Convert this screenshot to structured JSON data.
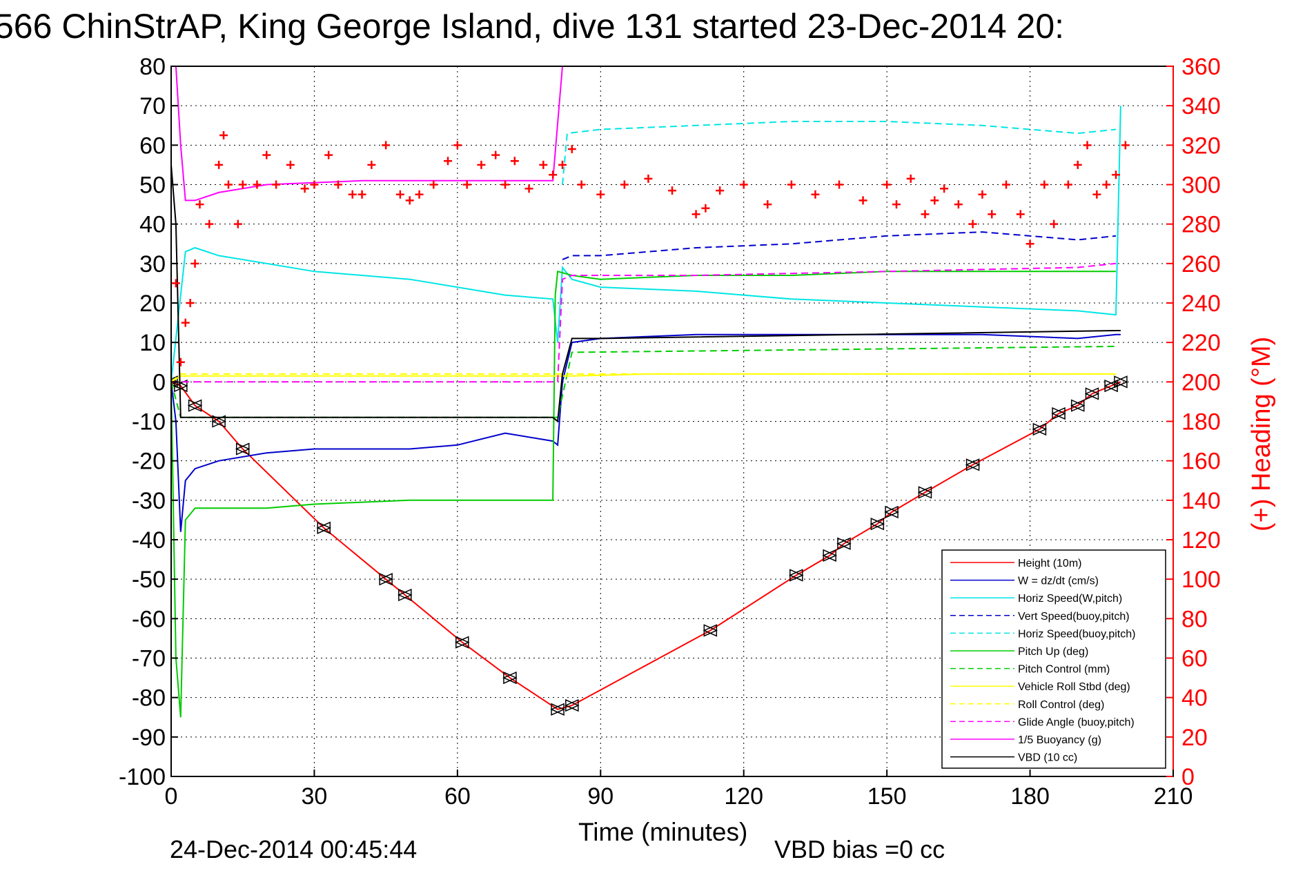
{
  "chart_data": {
    "type": "line",
    "title": "566 ChinStrAP, King George Island, dive 131 started 23-Dec-2014 20:",
    "xlabel": "Time (minutes)",
    "ylabel_right": "(+) Heading (°M)",
    "footer_left": "24-Dec-2014 00:45:44",
    "footer_right": "VBD bias =0 cc",
    "xlim": [
      0,
      210
    ],
    "ylim": [
      -100,
      80
    ],
    "y2lim": [
      0,
      360
    ],
    "x_ticks": [
      "0",
      "30",
      "60",
      "90",
      "120",
      "150",
      "180",
      "210"
    ],
    "y_ticks": [
      "80",
      "70",
      "60",
      "50",
      "40",
      "30",
      "20",
      "10",
      "0",
      "-10",
      "-20",
      "-30",
      "-40",
      "-50",
      "-60",
      "-70",
      "-80",
      "-90",
      "-100"
    ],
    "y2_ticks": [
      "360",
      "340",
      "320",
      "300",
      "280",
      "260",
      "240",
      "220",
      "200",
      "180",
      "160",
      "140",
      "120",
      "100",
      "80",
      "60",
      "40",
      "20",
      "0"
    ],
    "grid": true,
    "legend_position": "lower-right",
    "series": [
      {
        "name": "Height (10m)",
        "color": "#ff0000",
        "style": "solid",
        "x": [
          0,
          2,
          5,
          10,
          15,
          32,
          45,
          49,
          61,
          71,
          81,
          84,
          113,
          131,
          138,
          141,
          148,
          151,
          158,
          168,
          182,
          186,
          190,
          193,
          197,
          199
        ],
        "y": [
          0,
          -1,
          -6,
          -10,
          -17,
          -37,
          -50,
          -54,
          -66,
          -75,
          -83,
          -82,
          -63,
          -49,
          -44,
          -41,
          -36,
          -33,
          -28,
          -21,
          -12,
          -8,
          -6,
          -3,
          -1,
          0
        ]
      },
      {
        "name": "W = dz/dt (cm/s)",
        "color": "#0000cc",
        "style": "solid",
        "x": [
          0,
          1,
          2,
          3,
          5,
          10,
          20,
          30,
          40,
          50,
          60,
          70,
          80,
          81,
          82,
          84,
          90,
          110,
          130,
          150,
          170,
          190,
          198,
          199
        ],
        "y": [
          0,
          -10,
          -38,
          -25,
          -22,
          -20,
          -18,
          -17,
          -17,
          -17,
          -16,
          -13,
          -15,
          -16,
          0,
          10,
          11,
          12,
          12,
          12,
          12,
          11,
          12,
          12
        ]
      },
      {
        "name": "Horiz Speed(W,pitch)",
        "color": "#00e5e5",
        "style": "solid",
        "x": [
          0,
          3,
          5,
          10,
          20,
          30,
          40,
          50,
          60,
          70,
          80,
          81,
          82,
          84,
          90,
          110,
          130,
          150,
          170,
          190,
          198,
          199
        ],
        "y": [
          0,
          33,
          34,
          32,
          30,
          28,
          27,
          26,
          24,
          22,
          21,
          10,
          29,
          26,
          24,
          23,
          21,
          20,
          19,
          18,
          17,
          70
        ]
      },
      {
        "name": "Vert Speed(buoy,pitch)",
        "color": "#0000cc",
        "style": "dashed",
        "x": [
          82,
          84,
          90,
          110,
          130,
          150,
          170,
          190,
          198
        ],
        "y": [
          31,
          32,
          32,
          34,
          35,
          37,
          38,
          36,
          37
        ]
      },
      {
        "name": "Horiz Speed(buoy,pitch)",
        "color": "#00e5e5",
        "style": "dashed",
        "x": [
          82,
          83,
          90,
          110,
          130,
          150,
          170,
          190,
          198
        ],
        "y": [
          50,
          63,
          64,
          65,
          66,
          66,
          65,
          63,
          64
        ]
      },
      {
        "name": "Pitch Up (deg)",
        "color": "#00cc00",
        "style": "solid",
        "x": [
          0,
          1,
          2,
          3,
          5,
          10,
          20,
          30,
          50,
          70,
          80,
          80.5,
          81,
          84,
          90,
          110,
          130,
          150,
          170,
          190,
          198
        ],
        "y": [
          0,
          -70,
          -85,
          -35,
          -32,
          -32,
          -32,
          -31,
          -30,
          -30,
          -30,
          22,
          28,
          27,
          26,
          27,
          27,
          28,
          28,
          28,
          28
        ]
      },
      {
        "name": "Pitch Control (mm)",
        "color": "#00cc00",
        "style": "dashed",
        "x": [
          0,
          2,
          81,
          84,
          198
        ],
        "y": [
          0,
          -9,
          -9,
          7.5,
          9
        ]
      },
      {
        "name": "Vehicle Roll Stbd (deg)",
        "color": "#ffff00",
        "style": "solid",
        "x": [
          0,
          2,
          20,
          40,
          60,
          80,
          84,
          100,
          130,
          160,
          190,
          198
        ],
        "y": [
          0,
          1.5,
          1.5,
          1.5,
          1.5,
          1.5,
          1.5,
          2,
          2,
          2,
          2,
          2
        ]
      },
      {
        "name": "Roll Control (deg)",
        "color": "#ffff00",
        "style": "dashed",
        "x": [
          0,
          2,
          80,
          84,
          198
        ],
        "y": [
          0,
          2,
          2,
          2,
          2
        ]
      },
      {
        "name": "Glide Angle (buoy,pitch)",
        "color": "#ff00ff",
        "style": "dashed",
        "x": [
          0,
          81,
          82,
          84,
          110,
          150,
          190,
          198
        ],
        "y": [
          0,
          0,
          26,
          27,
          27,
          28,
          29,
          30
        ]
      },
      {
        "name": "1/5 Buoyancy (g)",
        "color": "#ff00ff",
        "style": "solid",
        "x": [
          1,
          2,
          3,
          5,
          10,
          20,
          40,
          60,
          80,
          82
        ],
        "y": [
          80,
          60,
          46,
          46,
          48,
          50,
          51,
          51,
          51,
          80
        ]
      },
      {
        "name": "VBD (10 cc)",
        "color": "#000000",
        "style": "solid",
        "x": [
          0,
          1,
          2,
          5,
          80,
          81,
          82,
          84,
          90,
          198,
          199
        ],
        "y": [
          55,
          40,
          -9,
          -9,
          -9,
          -10,
          2,
          11,
          11,
          13,
          13
        ]
      },
      {
        "name": "Heading",
        "axis": "right",
        "color": "#ff0000",
        "style": "plus",
        "x": [
          1,
          2,
          3,
          4,
          5,
          6,
          8,
          10,
          11,
          12,
          14,
          15,
          18,
          20,
          22,
          25,
          28,
          30,
          33,
          35,
          38,
          40,
          42,
          45,
          48,
          50,
          52,
          55,
          58,
          60,
          62,
          65,
          68,
          70,
          72,
          75,
          78,
          80,
          82,
          84,
          86,
          90,
          95,
          100,
          105,
          110,
          112,
          115,
          120,
          125,
          130,
          135,
          140,
          145,
          150,
          152,
          155,
          158,
          160,
          162,
          165,
          168,
          170,
          172,
          175,
          178,
          180,
          183,
          185,
          188,
          190,
          192,
          194,
          196,
          198,
          200
        ],
        "y": [
          250,
          210,
          230,
          240,
          260,
          290,
          280,
          310,
          325,
          300,
          280,
          300,
          300,
          315,
          300,
          310,
          298,
          300,
          315,
          300,
          295,
          295,
          310,
          320,
          295,
          292,
          295,
          300,
          312,
          320,
          300,
          310,
          315,
          300,
          312,
          298,
          310,
          305,
          310,
          318,
          300,
          295,
          300,
          303,
          297,
          285,
          288,
          297,
          300,
          290,
          300,
          295,
          300,
          292,
          300,
          290,
          303,
          285,
          292,
          298,
          290,
          280,
          295,
          285,
          300,
          285,
          270,
          300,
          280,
          300,
          310,
          320,
          295,
          300,
          305,
          320
        ]
      }
    ],
    "legend": [
      "Height (10m)",
      "W = dz/dt (cm/s)",
      "Horiz Speed(W,pitch)",
      "Vert Speed(buoy,pitch)",
      "Horiz Speed(buoy,pitch)",
      "Pitch Up (deg)",
      "Pitch Control (mm)",
      "Vehicle Roll Stbd (deg)",
      "Roll Control (deg)",
      "Glide Angle (buoy,pitch)",
      "1/5 Buoyancy (g)",
      "VBD (10 cc)"
    ]
  }
}
